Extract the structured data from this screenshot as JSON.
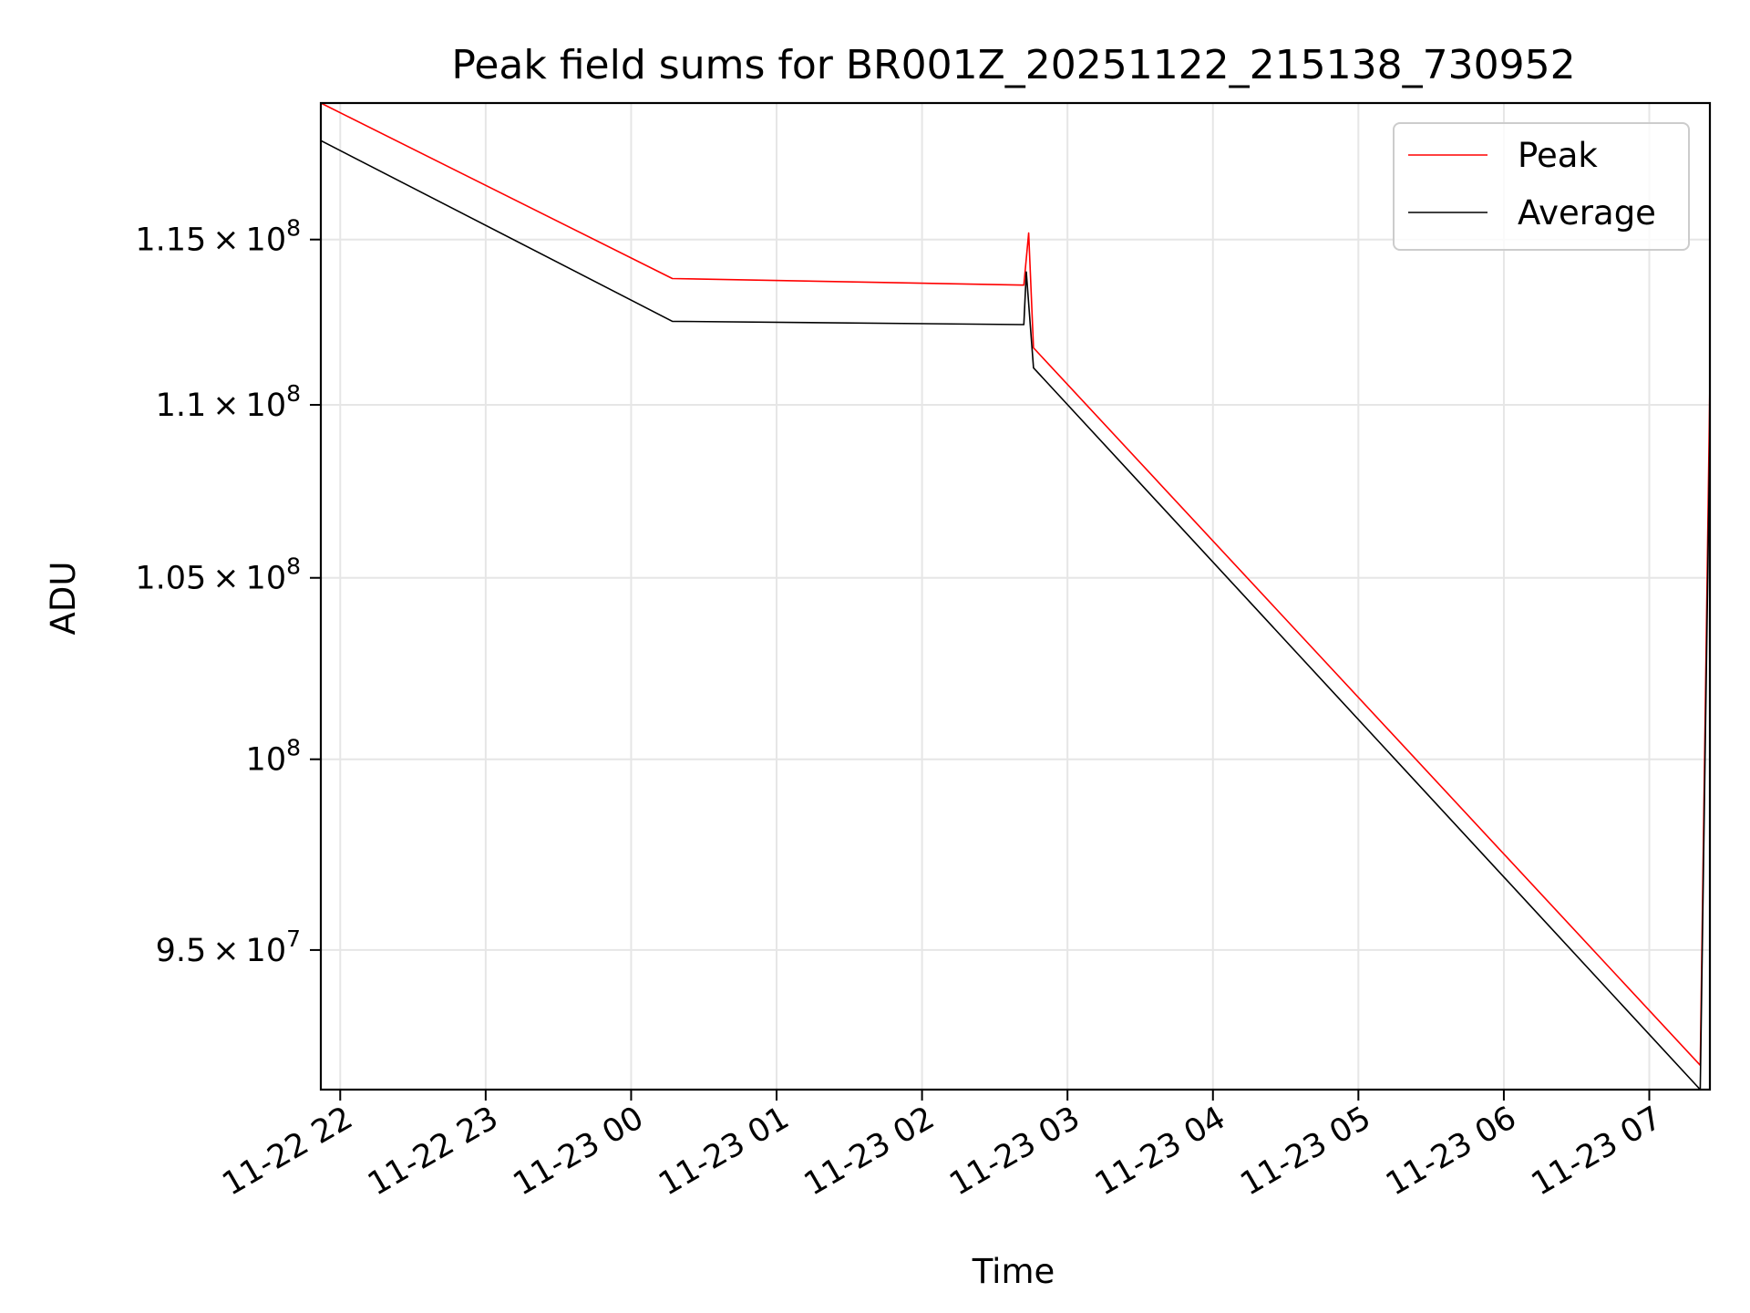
{
  "chart_data": {
    "type": "line",
    "title": "Peak field sums for BR001Z_20251122_215138_730952",
    "xlabel": "Time",
    "ylabel": "ADU",
    "x_axis_type": "datetime",
    "y_scale": "log",
    "xlim": [
      "2025-11-22 21:52",
      "2025-11-23 07:25"
    ],
    "ylim": [
      91500000,
      119300000
    ],
    "grid": true,
    "legend_position": "upper right",
    "x_ticks": [
      {
        "value": "2025-11-22 22:00",
        "label": "11-22 22"
      },
      {
        "value": "2025-11-22 23:00",
        "label": "11-22 23"
      },
      {
        "value": "2025-11-23 00:00",
        "label": "11-23 00"
      },
      {
        "value": "2025-11-23 01:00",
        "label": "11-23 01"
      },
      {
        "value": "2025-11-23 02:00",
        "label": "11-23 02"
      },
      {
        "value": "2025-11-23 03:00",
        "label": "11-23 03"
      },
      {
        "value": "2025-11-23 04:00",
        "label": "11-23 04"
      },
      {
        "value": "2025-11-23 05:00",
        "label": "11-23 05"
      },
      {
        "value": "2025-11-23 06:00",
        "label": "11-23 06"
      },
      {
        "value": "2025-11-23 07:00",
        "label": "11-23 07"
      }
    ],
    "y_ticks": [
      {
        "value": 95000000,
        "mantissa": "9.5",
        "times": "×",
        "base": "10",
        "exp": "7"
      },
      {
        "value": 100000000,
        "mantissa": "",
        "times": "",
        "base": "10",
        "exp": "8"
      },
      {
        "value": 105000000,
        "mantissa": "1.05",
        "times": "×",
        "base": "10",
        "exp": "8"
      },
      {
        "value": 110000000,
        "mantissa": "1.1",
        "times": "×",
        "base": "10",
        "exp": "8"
      },
      {
        "value": 115000000,
        "mantissa": "1.15",
        "times": "×",
        "base": "10",
        "exp": "8"
      }
    ],
    "series": [
      {
        "name": "Peak",
        "color": "#ff0000",
        "points": [
          [
            "2025-11-22 21:52",
            119300000
          ],
          [
            "2025-11-23 00:17",
            113800000
          ],
          [
            "2025-11-23 02:42",
            113600000
          ],
          [
            "2025-11-23 02:44",
            115200000
          ],
          [
            "2025-11-23 02:46",
            111700000
          ],
          [
            "2025-11-23 07:21",
            92100000
          ],
          [
            "2025-11-23 07:25",
            110700000
          ]
        ]
      },
      {
        "name": "Average",
        "color": "#000000",
        "points": [
          [
            "2025-11-22 21:52",
            118100000
          ],
          [
            "2025-11-23 00:17",
            112500000
          ],
          [
            "2025-11-23 02:42",
            112400000
          ],
          [
            "2025-11-23 02:43",
            114000000
          ],
          [
            "2025-11-23 02:46",
            111100000
          ],
          [
            "2025-11-23 07:21",
            91500000
          ],
          [
            "2025-11-23 07:25",
            109300000
          ]
        ]
      }
    ]
  }
}
